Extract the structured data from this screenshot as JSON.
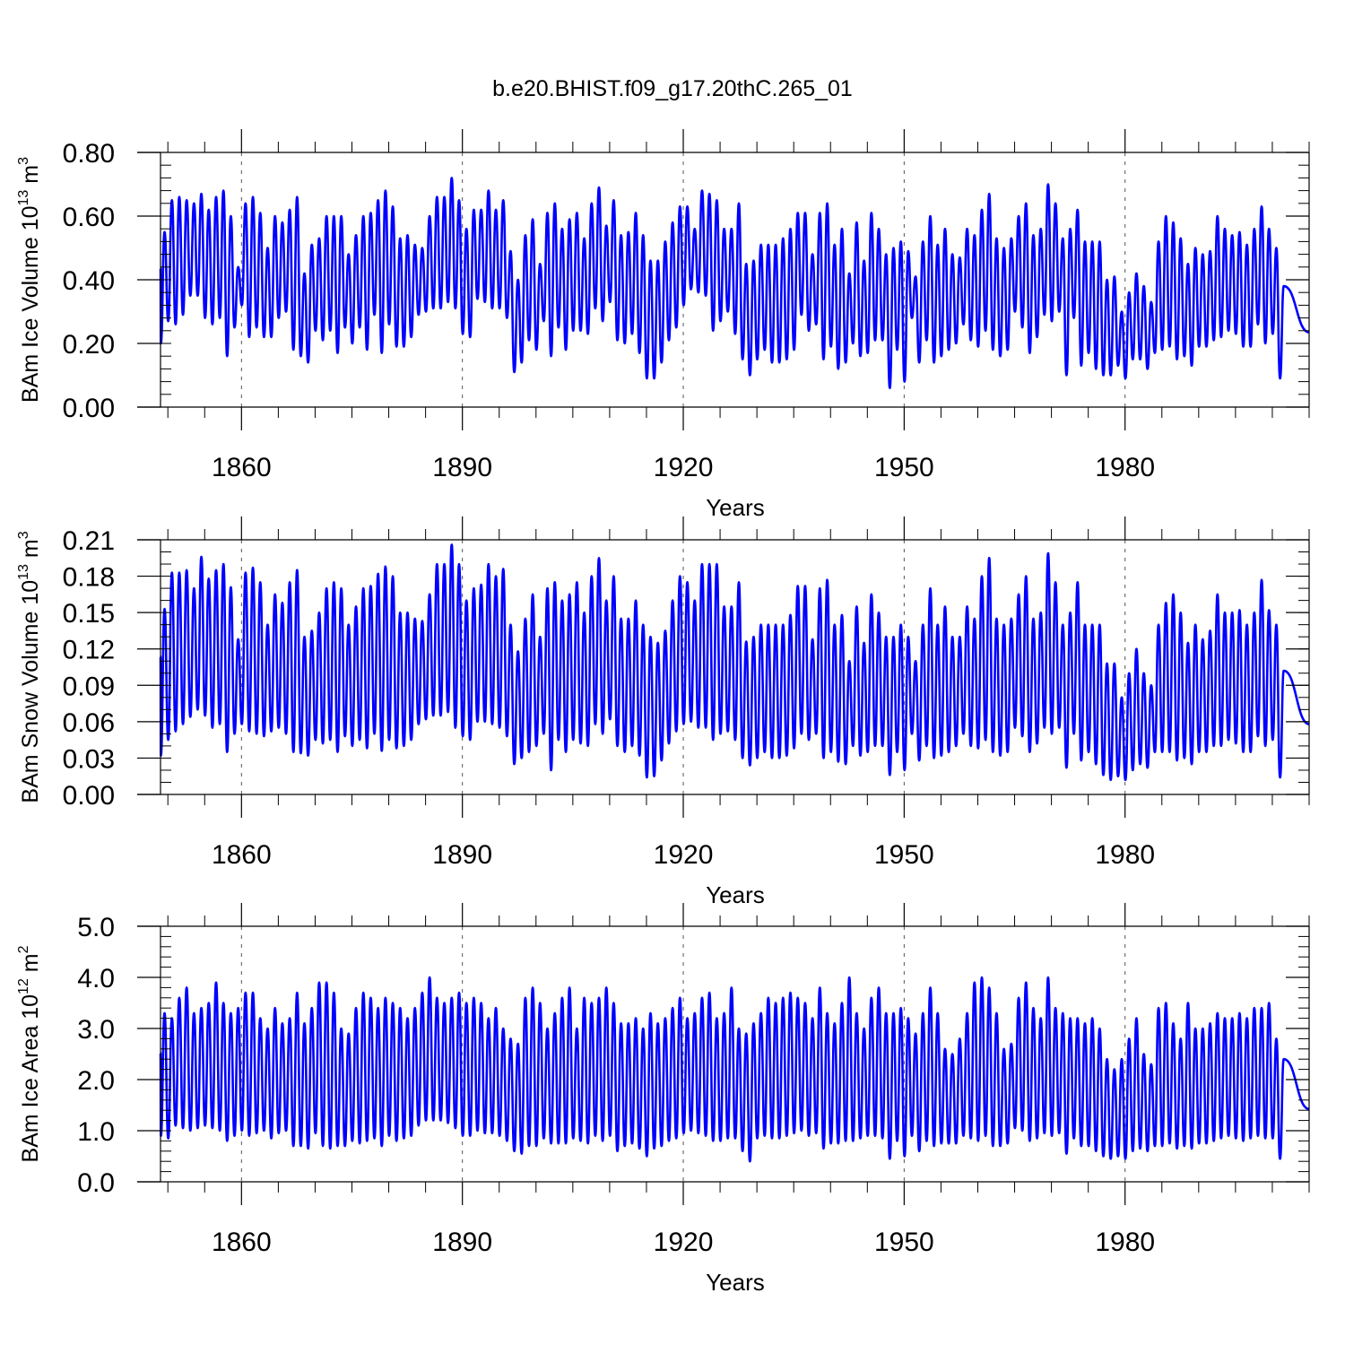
{
  "title": "b.e20.BHIST.f09_g17.20thC.265_01",
  "colors": {
    "line": "#0000ff",
    "axis": "#000000",
    "grid": "#555555"
  },
  "chart_data": [
    {
      "type": "line",
      "name": "ice-volume",
      "ylabel": {
        "main": "BAm Ice Volume 10",
        "sup": "13",
        "unit": " m",
        "unit_sup": "3"
      },
      "xlabel": "Years",
      "xlim": [
        1849.0,
        2005.0
      ],
      "ylim": [
        0.0,
        0.8
      ],
      "yticks": [
        0.0,
        0.2,
        0.4,
        0.6,
        0.8
      ],
      "ytick_labels": [
        "0.00",
        "0.20",
        "0.40",
        "0.60",
        "0.80"
      ],
      "y_minor_step": 0.04,
      "xticks": [
        1860,
        1890,
        1920,
        1950,
        1980
      ],
      "xtick_labels": [
        "1860",
        "1890",
        "1920",
        "1950",
        "1980"
      ],
      "x_minor_step": 5,
      "grid_x": true,
      "series": [
        {
          "name": "BAm Ice Volume",
          "start_year": 1850,
          "min": [
            0.2,
            0.27,
            0.26,
            0.29,
            0.35,
            0.35,
            0.28,
            0.26,
            0.28,
            0.16,
            0.25,
            0.32,
            0.22,
            0.25,
            0.22,
            0.22,
            0.28,
            0.3,
            0.18,
            0.16,
            0.14,
            0.24,
            0.21,
            0.24,
            0.17,
            0.25,
            0.2,
            0.25,
            0.18,
            0.29,
            0.17,
            0.26,
            0.19,
            0.19,
            0.22,
            0.29,
            0.3,
            0.31,
            0.31,
            0.33,
            0.31,
            0.23,
            0.22,
            0.34,
            0.33,
            0.31,
            0.31,
            0.28,
            0.11,
            0.14,
            0.21,
            0.18,
            0.27,
            0.16,
            0.25,
            0.18,
            0.24,
            0.24,
            0.23,
            0.31,
            0.27,
            0.33,
            0.21,
            0.2,
            0.23,
            0.17,
            0.09,
            0.09,
            0.14,
            0.21,
            0.25,
            0.32,
            0.37,
            0.36,
            0.35,
            0.24,
            0.27,
            0.3,
            0.23,
            0.15,
            0.1,
            0.15,
            0.18,
            0.14,
            0.14,
            0.15,
            0.18,
            0.29,
            0.24,
            0.26,
            0.15,
            0.19,
            0.12,
            0.14,
            0.2,
            0.16,
            0.17,
            0.21,
            0.21,
            0.06,
            0.18,
            0.08,
            0.28,
            0.14,
            0.21,
            0.14,
            0.16,
            0.18,
            0.2,
            0.26,
            0.21,
            0.19,
            0.24,
            0.18,
            0.16,
            0.18,
            0.3,
            0.25,
            0.17,
            0.22,
            0.29,
            0.27,
            0.3,
            0.1,
            0.28,
            0.13,
            0.17,
            0.12,
            0.1,
            0.1,
            0.13,
            0.09,
            0.15,
            0.15,
            0.12,
            0.17,
            0.18,
            0.19,
            0.15,
            0.16,
            0.13,
            0.19,
            0.19,
            0.21,
            0.22,
            0.24,
            0.23,
            0.19,
            0.19,
            0.26,
            0.2,
            0.23,
            0.09
          ],
          "max": [
            0.55,
            0.65,
            0.66,
            0.65,
            0.64,
            0.67,
            0.62,
            0.66,
            0.68,
            0.6,
            0.44,
            0.64,
            0.66,
            0.61,
            0.5,
            0.6,
            0.58,
            0.62,
            0.66,
            0.42,
            0.51,
            0.53,
            0.6,
            0.6,
            0.6,
            0.48,
            0.54,
            0.6,
            0.61,
            0.65,
            0.68,
            0.63,
            0.53,
            0.54,
            0.51,
            0.5,
            0.6,
            0.66,
            0.66,
            0.72,
            0.65,
            0.56,
            0.62,
            0.62,
            0.68,
            0.62,
            0.65,
            0.49,
            0.4,
            0.54,
            0.59,
            0.45,
            0.61,
            0.64,
            0.56,
            0.59,
            0.61,
            0.53,
            0.64,
            0.69,
            0.57,
            0.65,
            0.54,
            0.55,
            0.61,
            0.54,
            0.46,
            0.46,
            0.52,
            0.58,
            0.63,
            0.63,
            0.56,
            0.68,
            0.67,
            0.65,
            0.56,
            0.56,
            0.64,
            0.45,
            0.46,
            0.51,
            0.51,
            0.51,
            0.53,
            0.56,
            0.61,
            0.61,
            0.48,
            0.61,
            0.64,
            0.51,
            0.56,
            0.42,
            0.58,
            0.46,
            0.61,
            0.56,
            0.48,
            0.5,
            0.52,
            0.49,
            0.41,
            0.52,
            0.6,
            0.51,
            0.56,
            0.48,
            0.47,
            0.56,
            0.54,
            0.62,
            0.67,
            0.53,
            0.5,
            0.53,
            0.6,
            0.64,
            0.54,
            0.56,
            0.7,
            0.64,
            0.53,
            0.56,
            0.62,
            0.52,
            0.52,
            0.52,
            0.4,
            0.41,
            0.3,
            0.36,
            0.42,
            0.38,
            0.33,
            0.52,
            0.6,
            0.58,
            0.53,
            0.45,
            0.5,
            0.48,
            0.49,
            0.6,
            0.56,
            0.54,
            0.55,
            0.51,
            0.56,
            0.63,
            0.56,
            0.5,
            0.38
          ]
        }
      ]
    },
    {
      "type": "line",
      "name": "snow-volume",
      "ylabel": {
        "main": "BAm Snow Volume 10",
        "sup": "13",
        "unit": " m",
        "unit_sup": "3"
      },
      "xlabel": "Years",
      "xlim": [
        1849.0,
        2005.0
      ],
      "ylim": [
        0.0,
        0.21
      ],
      "yticks": [
        0.0,
        0.03,
        0.06,
        0.09,
        0.12,
        0.15,
        0.18,
        0.21
      ],
      "ytick_labels": [
        "0.00",
        "0.03",
        "0.06",
        "0.09",
        "0.12",
        "0.15",
        "0.18",
        "0.21"
      ],
      "y_minor_step": 0.01,
      "xticks": [
        1860,
        1890,
        1920,
        1950,
        1980
      ],
      "xtick_labels": [
        "1860",
        "1890",
        "1920",
        "1950",
        "1980"
      ],
      "x_minor_step": 5,
      "grid_x": true,
      "series": [
        {
          "name": "BAm Snow Volume",
          "start_year": 1850,
          "min": [
            0.032,
            0.045,
            0.052,
            0.058,
            0.064,
            0.07,
            0.065,
            0.055,
            0.058,
            0.035,
            0.05,
            0.058,
            0.052,
            0.05,
            0.048,
            0.052,
            0.055,
            0.05,
            0.035,
            0.034,
            0.032,
            0.045,
            0.042,
            0.045,
            0.035,
            0.048,
            0.04,
            0.045,
            0.038,
            0.05,
            0.036,
            0.045,
            0.038,
            0.04,
            0.045,
            0.058,
            0.062,
            0.065,
            0.065,
            0.068,
            0.055,
            0.048,
            0.045,
            0.06,
            0.06,
            0.058,
            0.055,
            0.048,
            0.025,
            0.03,
            0.035,
            0.04,
            0.05,
            0.02,
            0.045,
            0.035,
            0.045,
            0.042,
            0.04,
            0.058,
            0.05,
            0.062,
            0.04,
            0.035,
            0.04,
            0.032,
            0.014,
            0.015,
            0.028,
            0.042,
            0.052,
            0.058,
            0.06,
            0.055,
            0.055,
            0.045,
            0.05,
            0.052,
            0.045,
            0.03,
            0.024,
            0.03,
            0.035,
            0.03,
            0.03,
            0.032,
            0.038,
            0.05,
            0.045,
            0.05,
            0.03,
            0.035,
            0.027,
            0.025,
            0.04,
            0.032,
            0.035,
            0.04,
            0.04,
            0.016,
            0.035,
            0.02,
            0.05,
            0.028,
            0.04,
            0.03,
            0.032,
            0.035,
            0.04,
            0.05,
            0.04,
            0.038,
            0.045,
            0.035,
            0.032,
            0.035,
            0.055,
            0.048,
            0.035,
            0.042,
            0.055,
            0.05,
            0.055,
            0.022,
            0.05,
            0.028,
            0.035,
            0.025,
            0.016,
            0.012,
            0.015,
            0.012,
            0.02,
            0.025,
            0.022,
            0.035,
            0.035,
            0.035,
            0.028,
            0.03,
            0.025,
            0.035,
            0.035,
            0.04,
            0.04,
            0.045,
            0.042,
            0.035,
            0.035,
            0.048,
            0.04,
            0.045,
            0.014
          ],
          "max": [
            0.153,
            0.183,
            0.183,
            0.185,
            0.17,
            0.196,
            0.178,
            0.185,
            0.19,
            0.171,
            0.128,
            0.183,
            0.187,
            0.175,
            0.14,
            0.165,
            0.158,
            0.175,
            0.185,
            0.13,
            0.135,
            0.15,
            0.17,
            0.175,
            0.17,
            0.14,
            0.155,
            0.17,
            0.172,
            0.182,
            0.188,
            0.18,
            0.15,
            0.15,
            0.145,
            0.143,
            0.165,
            0.19,
            0.19,
            0.206,
            0.19,
            0.16,
            0.17,
            0.173,
            0.19,
            0.18,
            0.186,
            0.14,
            0.118,
            0.145,
            0.165,
            0.13,
            0.17,
            0.175,
            0.16,
            0.165,
            0.175,
            0.15,
            0.18,
            0.195,
            0.16,
            0.18,
            0.145,
            0.145,
            0.16,
            0.14,
            0.13,
            0.125,
            0.135,
            0.16,
            0.18,
            0.175,
            0.16,
            0.19,
            0.19,
            0.19,
            0.155,
            0.155,
            0.175,
            0.126,
            0.13,
            0.14,
            0.14,
            0.14,
            0.14,
            0.148,
            0.172,
            0.172,
            0.128,
            0.17,
            0.177,
            0.14,
            0.148,
            0.11,
            0.155,
            0.125,
            0.165,
            0.15,
            0.13,
            0.13,
            0.14,
            0.13,
            0.11,
            0.14,
            0.17,
            0.14,
            0.155,
            0.13,
            0.13,
            0.155,
            0.145,
            0.18,
            0.195,
            0.145,
            0.14,
            0.145,
            0.165,
            0.18,
            0.145,
            0.15,
            0.199,
            0.175,
            0.14,
            0.15,
            0.175,
            0.14,
            0.14,
            0.14,
            0.108,
            0.108,
            0.08,
            0.1,
            0.12,
            0.1,
            0.09,
            0.14,
            0.158,
            0.165,
            0.15,
            0.125,
            0.14,
            0.128,
            0.135,
            0.165,
            0.15,
            0.15,
            0.152,
            0.14,
            0.15,
            0.177,
            0.152,
            0.14,
            0.102
          ]
        }
      ]
    },
    {
      "type": "line",
      "name": "ice-area",
      "ylabel": {
        "main": "BAm Ice Area 10",
        "sup": "12",
        "unit": " m",
        "unit_sup": "2"
      },
      "xlabel": "Years",
      "xlim": [
        1849.0,
        2005.0
      ],
      "ylim": [
        0.0,
        5.0
      ],
      "yticks": [
        0.0,
        1.0,
        2.0,
        3.0,
        4.0,
        5.0
      ],
      "ytick_labels": [
        "0.0",
        "1.0",
        "2.0",
        "3.0",
        "4.0",
        "5.0"
      ],
      "y_minor_step": 0.2,
      "xticks": [
        1860,
        1890,
        1920,
        1950,
        1980
      ],
      "xtick_labels": [
        "1860",
        "1890",
        "1920",
        "1950",
        "1980"
      ],
      "x_minor_step": 5,
      "grid_x": true,
      "series": [
        {
          "name": "BAm Ice Area",
          "start_year": 1850,
          "min": [
            0.9,
            0.85,
            1.1,
            1.05,
            1.0,
            1.05,
            1.1,
            1.05,
            1.0,
            0.8,
            0.9,
            1.0,
            0.9,
            0.95,
            1.0,
            0.85,
            0.95,
            1.0,
            0.7,
            0.7,
            0.65,
            0.95,
            0.7,
            0.65,
            0.7,
            0.7,
            0.8,
            0.75,
            0.8,
            0.85,
            0.7,
            0.9,
            0.8,
            0.85,
            0.9,
            1.1,
            1.2,
            1.2,
            1.2,
            1.15,
            1.05,
            0.9,
            0.9,
            1.0,
            0.95,
            0.95,
            0.9,
            0.8,
            0.6,
            0.55,
            0.7,
            0.7,
            0.85,
            0.75,
            0.75,
            0.75,
            0.85,
            0.8,
            0.75,
            0.9,
            0.8,
            0.9,
            0.6,
            0.7,
            0.75,
            0.65,
            0.5,
            0.65,
            0.7,
            0.8,
            0.85,
            0.95,
            1.0,
            0.95,
            0.9,
            0.8,
            0.8,
            0.85,
            0.85,
            0.6,
            0.4,
            0.85,
            0.9,
            0.85,
            0.85,
            0.9,
            0.95,
            1.0,
            0.9,
            0.95,
            0.65,
            0.75,
            0.75,
            0.8,
            0.8,
            0.85,
            0.9,
            0.9,
            0.85,
            0.45,
            0.8,
            0.5,
            0.9,
            0.6,
            0.8,
            0.7,
            0.75,
            0.75,
            0.75,
            0.9,
            0.85,
            0.8,
            0.9,
            0.7,
            0.7,
            0.75,
            1.05,
            1.0,
            0.8,
            0.85,
            0.95,
            0.9,
            0.95,
            0.55,
            0.85,
            0.7,
            0.7,
            0.6,
            0.5,
            0.45,
            0.5,
            0.45,
            0.6,
            0.65,
            0.6,
            0.7,
            0.7,
            0.75,
            0.65,
            0.7,
            0.65,
            0.75,
            0.75,
            0.8,
            0.85,
            0.9,
            0.85,
            0.8,
            0.85,
            0.9,
            0.85,
            0.85,
            0.45
          ],
          "max": [
            3.3,
            3.2,
            3.6,
            3.8,
            3.3,
            3.4,
            3.5,
            3.9,
            3.5,
            3.3,
            3.4,
            3.7,
            3.7,
            3.2,
            3.0,
            3.4,
            3.1,
            3.2,
            3.7,
            3.1,
            3.4,
            3.9,
            3.9,
            3.7,
            3.0,
            2.9,
            3.4,
            3.7,
            3.6,
            3.4,
            3.6,
            3.5,
            3.4,
            3.2,
            3.4,
            3.7,
            4.0,
            3.6,
            3.5,
            3.6,
            3.7,
            3.5,
            3.6,
            3.5,
            3.2,
            3.4,
            3.0,
            2.8,
            2.7,
            3.6,
            3.8,
            3.5,
            3.0,
            3.3,
            3.6,
            3.8,
            3.0,
            3.6,
            3.5,
            3.6,
            3.8,
            3.5,
            3.1,
            3.1,
            3.2,
            3.0,
            3.3,
            3.1,
            3.2,
            3.4,
            3.6,
            3.2,
            3.3,
            3.6,
            3.7,
            3.2,
            3.3,
            3.8,
            3.0,
            2.9,
            3.1,
            3.3,
            3.6,
            3.5,
            3.6,
            3.7,
            3.6,
            3.5,
            3.2,
            3.8,
            3.3,
            3.1,
            3.5,
            4.0,
            3.3,
            3.0,
            3.6,
            3.8,
            3.3,
            3.3,
            3.4,
            3.2,
            2.9,
            3.3,
            3.8,
            3.3,
            2.6,
            2.5,
            2.8,
            3.3,
            3.9,
            4.0,
            3.8,
            3.3,
            2.6,
            2.7,
            3.6,
            3.9,
            3.4,
            3.2,
            4.0,
            3.4,
            3.3,
            3.2,
            3.2,
            3.1,
            3.2,
            3.0,
            2.4,
            2.2,
            2.4,
            2.8,
            3.2,
            2.5,
            2.3,
            3.4,
            3.5,
            3.1,
            2.8,
            3.5,
            3.0,
            3.0,
            3.1,
            3.3,
            3.2,
            3.2,
            3.3,
            3.2,
            3.4,
            3.4,
            3.5,
            2.8,
            2.4
          ]
        }
      ]
    }
  ]
}
